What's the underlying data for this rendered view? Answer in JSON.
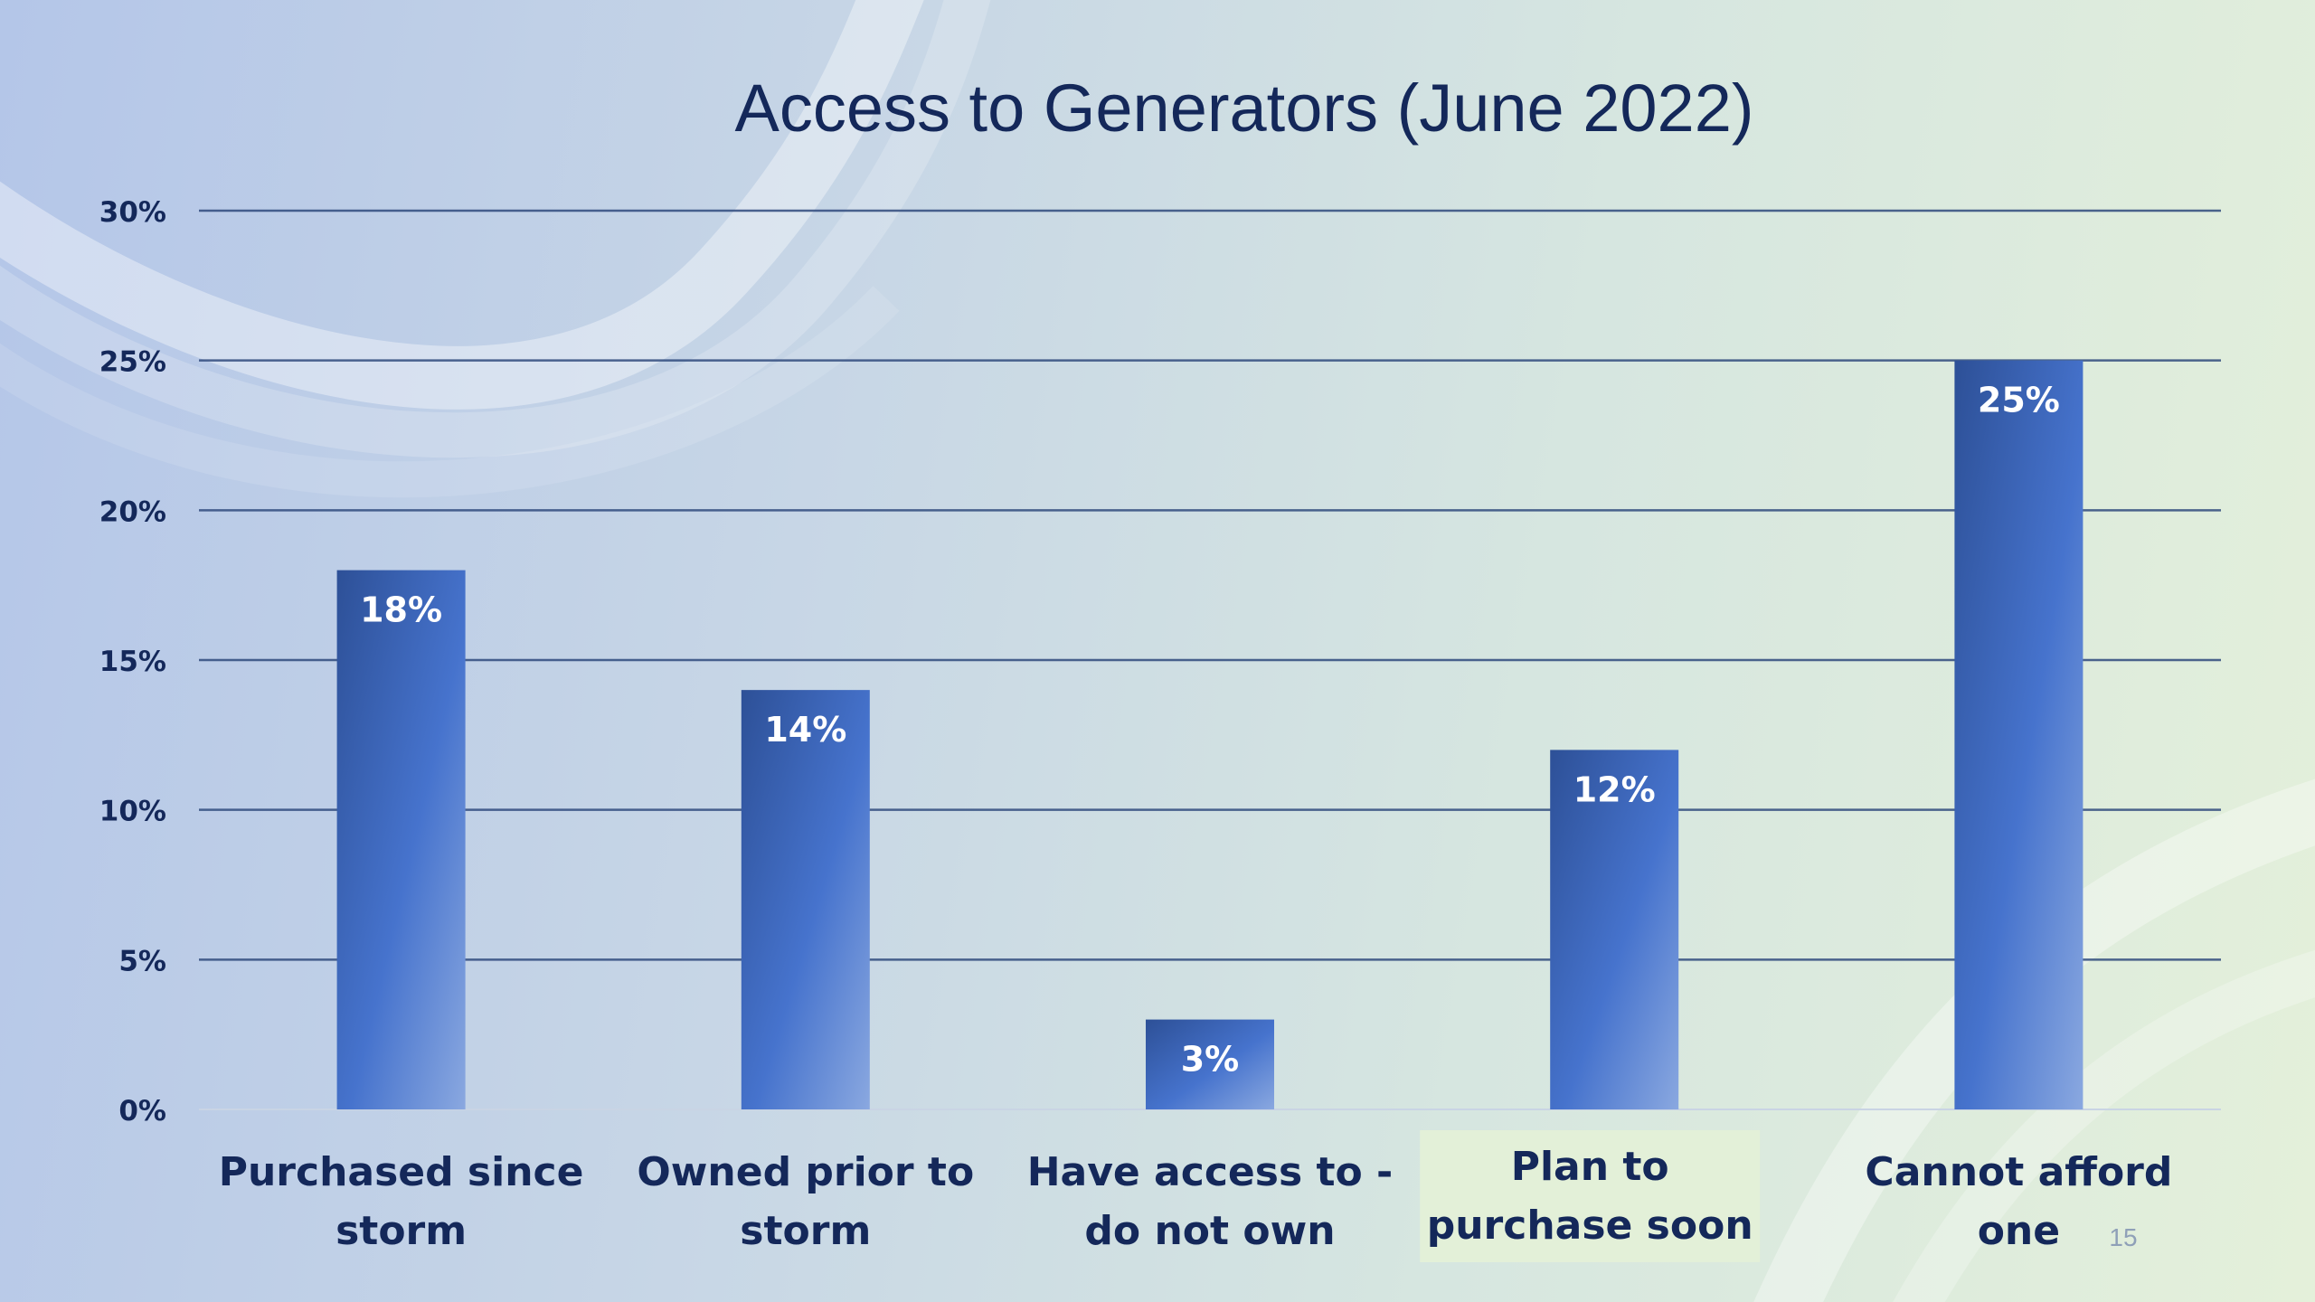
{
  "slide": {
    "page_number": "15"
  },
  "chart_data": {
    "type": "bar",
    "title": "Access to Generators (June 2022)",
    "categories": [
      "Purchased since storm",
      "Owned prior to storm",
      "Have access to - do not own",
      "Plan to purchase soon",
      "Cannot afford one"
    ],
    "category_lines": [
      [
        "Purchased since",
        "storm"
      ],
      [
        "Owned prior to",
        "storm"
      ],
      [
        "Have access to -",
        "do not own"
      ],
      [
        "Plan to",
        "purchase soon"
      ],
      [
        "Cannot afford",
        "one"
      ]
    ],
    "values": [
      18,
      14,
      3,
      12,
      25
    ],
    "data_labels": [
      "18%",
      "14%",
      "3%",
      "12%",
      "25%"
    ],
    "ylim": [
      0,
      30
    ],
    "yticks": [
      0,
      5,
      10,
      15,
      20,
      25,
      30
    ],
    "ytick_labels": [
      "0%",
      "5%",
      "10%",
      "15%",
      "20%",
      "25%",
      "30%"
    ],
    "xlabel": "",
    "ylabel": "",
    "grid": true,
    "legend": "none",
    "colors": {
      "bar_dark": "#2d5097",
      "bar_mid": "#4673cd",
      "bar_light": "#8aa8e0",
      "text": "#14285a",
      "grid": "#2f4a7d",
      "data_label": "#ffffff",
      "highlight_box": "#e3f0d8"
    },
    "highlighted_category_index": 3
  }
}
